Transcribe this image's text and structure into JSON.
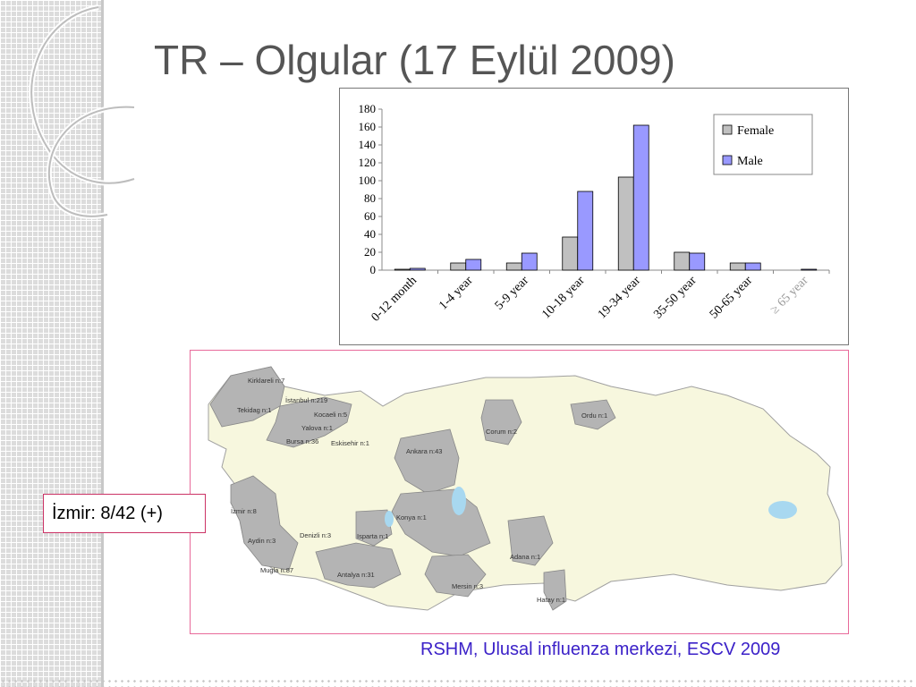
{
  "slide": {
    "title": "TR – Olgular (17 Eylül 2009)",
    "callout": "İzmir: 8/42 (+)",
    "source": "RSHM, Ulusal influenza merkezi, ESCV 2009"
  },
  "colors": {
    "female": "#c0c0c0",
    "male": "#9999ff",
    "title": "#555555",
    "source": "#3b21c8",
    "map_affected": "#b4b4b4",
    "map_base": "#f7f7de"
  },
  "chart_data": {
    "type": "bar",
    "categories": [
      "0-12 month",
      "1-4 year",
      "5-9 year",
      "10-18 year",
      "19-34 year",
      "35-50 year",
      "50-65 year",
      "≥ 65 year"
    ],
    "series": [
      {
        "name": "Female",
        "values": [
          1,
          8,
          8,
          37,
          104,
          20,
          8,
          0
        ]
      },
      {
        "name": "Male",
        "values": [
          2,
          12,
          19,
          88,
          162,
          19,
          8,
          1
        ]
      }
    ],
    "yticks": [
      0,
      20,
      40,
      60,
      80,
      100,
      120,
      140,
      160,
      180
    ],
    "ylim": [
      0,
      180
    ],
    "legend": "top-right",
    "grid": false
  },
  "map": {
    "labels": [
      {
        "id": "kirklareli",
        "text": "Kirklareli n:7"
      },
      {
        "id": "istanbul",
        "text": "İstanbul n:219"
      },
      {
        "id": "tekirdag",
        "text": "Tekidag n:1"
      },
      {
        "id": "kocaeli",
        "text": "Kocaeli n:5"
      },
      {
        "id": "yalova",
        "text": "Yalova n:1"
      },
      {
        "id": "bursa",
        "text": "Bursa n:36"
      },
      {
        "id": "eskisehir",
        "text": "Eskisehir n:1"
      },
      {
        "id": "ankara",
        "text": "Ankara n:43"
      },
      {
        "id": "corum",
        "text": "Corum n:2"
      },
      {
        "id": "ordu",
        "text": "Ordu n:1"
      },
      {
        "id": "izmir",
        "text": "İzmir n:8"
      },
      {
        "id": "konya",
        "text": "Konya n:1"
      },
      {
        "id": "aydin",
        "text": "Aydin n:3"
      },
      {
        "id": "denizli",
        "text": "Denizli n:3"
      },
      {
        "id": "isparta",
        "text": "Isparta n:1"
      },
      {
        "id": "mugla",
        "text": "Mugla n:87"
      },
      {
        "id": "antalya",
        "text": "Antalya n:31"
      },
      {
        "id": "adana",
        "text": "Adana n:1"
      },
      {
        "id": "mersin",
        "text": "Mersin n:3"
      },
      {
        "id": "hatay",
        "text": "Hatay n:1"
      }
    ]
  }
}
